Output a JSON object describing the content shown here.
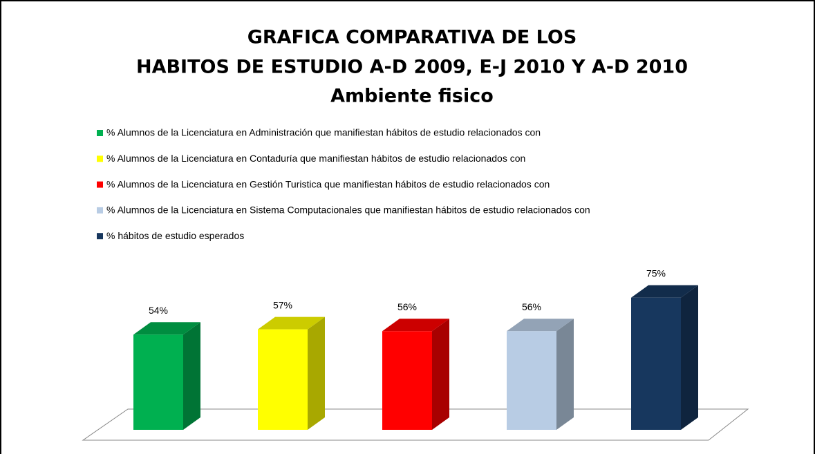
{
  "chart_data": {
    "type": "bar3d",
    "title": [
      "GRAFICA COMPARATIVA DE LOS",
      "HABITOS DE ESTUDIO A-D 2009, E-J 2010 Y A-D 2010"
    ],
    "subtitle": "Ambiente fisico",
    "legend": "top",
    "series": [
      {
        "name": "% Alumnos de la Licenciatura en Administración que manifiestan hábitos de estudio relacionados con",
        "color": "#00b050",
        "values": [
          54
        ],
        "value_labels": [
          "54%"
        ]
      },
      {
        "name": "% Alumnos de la Licenciatura en Contaduría que manifiestan hábitos de estudio relacionados con",
        "color": "#ffff00",
        "values": [
          57
        ],
        "value_labels": [
          "57%"
        ]
      },
      {
        "name": "% Alumnos de la Licenciatura en Gestión Turistica que manifiestan hábitos de estudio relacionados con",
        "color": "#ff0000",
        "values": [
          56
        ],
        "value_labels": [
          "56%"
        ]
      },
      {
        "name": "% Alumnos de la Licenciatura en Sistema Computacionales que manifiestan hábitos de estudio relacionados con",
        "color": "#b8cce4",
        "values": [
          56
        ],
        "value_labels": [
          "56%"
        ]
      },
      {
        "name": "% hábitos de estudio  esperados",
        "color": "#17375e",
        "values": [
          75
        ],
        "value_labels": [
          "75%"
        ]
      }
    ]
  }
}
